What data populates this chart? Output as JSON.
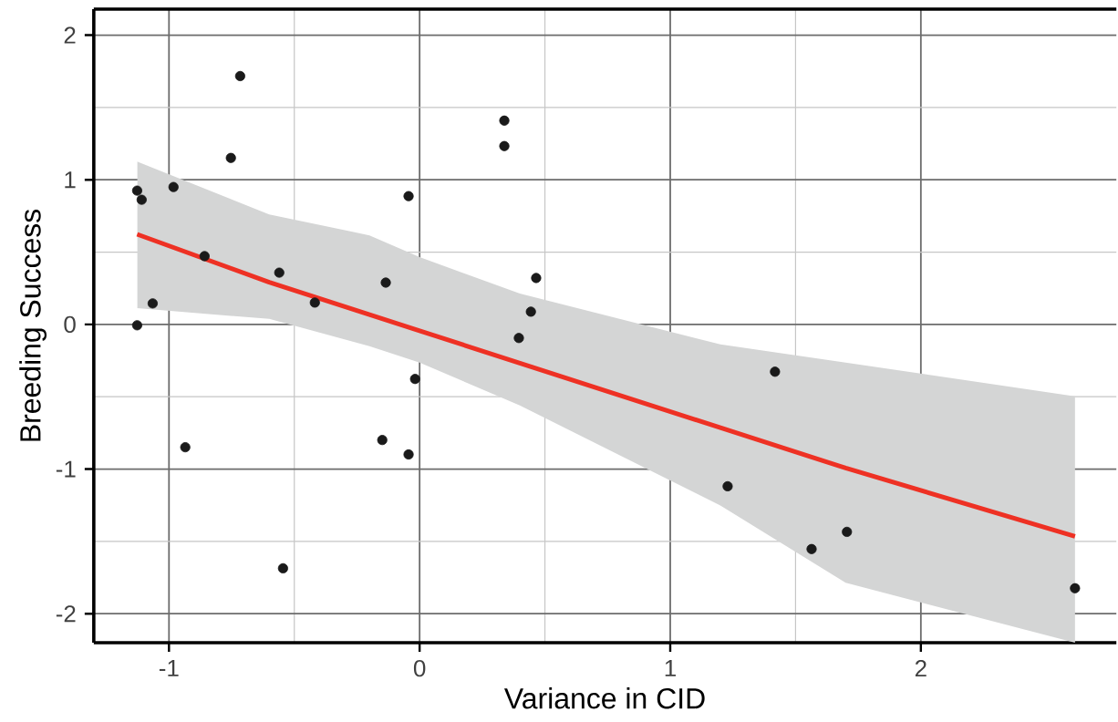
{
  "chart_data": {
    "type": "scatter",
    "xlabel": "Variance in CID",
    "ylabel": "Breeding Success",
    "xlim": [
      -1.3,
      2.78
    ],
    "ylim": [
      -2.2,
      2.18
    ],
    "xticks": [
      -1,
      0,
      1,
      2
    ],
    "yticks": [
      -2,
      -1,
      0,
      1,
      2
    ],
    "grid": true,
    "series": [
      {
        "marker": "circle",
        "color": "#1a1a1a",
        "x": [
          -1.127,
          -1.127,
          -1.109,
          -1.065,
          -0.982,
          -0.935,
          -0.858,
          -0.753,
          -0.716,
          -0.56,
          -0.545,
          -0.418,
          -0.149,
          -0.135,
          -0.044,
          -0.044,
          -0.018,
          0.338,
          0.338,
          0.396,
          0.444,
          0.465,
          1.229,
          1.418,
          1.564,
          1.705,
          2.615
        ],
        "values": [
          -0.006,
          0.925,
          0.862,
          0.145,
          0.95,
          -0.849,
          0.472,
          1.151,
          1.717,
          0.358,
          -1.686,
          0.151,
          -0.799,
          0.289,
          0.887,
          -0.899,
          -0.377,
          1.409,
          1.233,
          -0.094,
          0.088,
          0.321,
          -1.119,
          -0.327,
          -1.553,
          -1.434,
          -1.824
        ]
      },
      {
        "type": "line",
        "marker": "none",
        "color": "#ee3124",
        "x": [
          -1.127,
          -0.6,
          -0.2,
          0,
          0.4,
          1.2,
          1.7,
          2.615
        ],
        "values": [
          0.623,
          0.291,
          0.068,
          -0.044,
          -0.268,
          -0.714,
          -0.993,
          -1.465
        ],
        "lower": [
          0.113,
          0.038,
          -0.151,
          -0.264,
          -0.56,
          -1.252,
          -1.786,
          -2.2
        ],
        "upper": [
          1.126,
          0.761,
          0.616,
          0.465,
          0.214,
          -0.138,
          -0.264,
          -0.497
        ]
      }
    ]
  }
}
